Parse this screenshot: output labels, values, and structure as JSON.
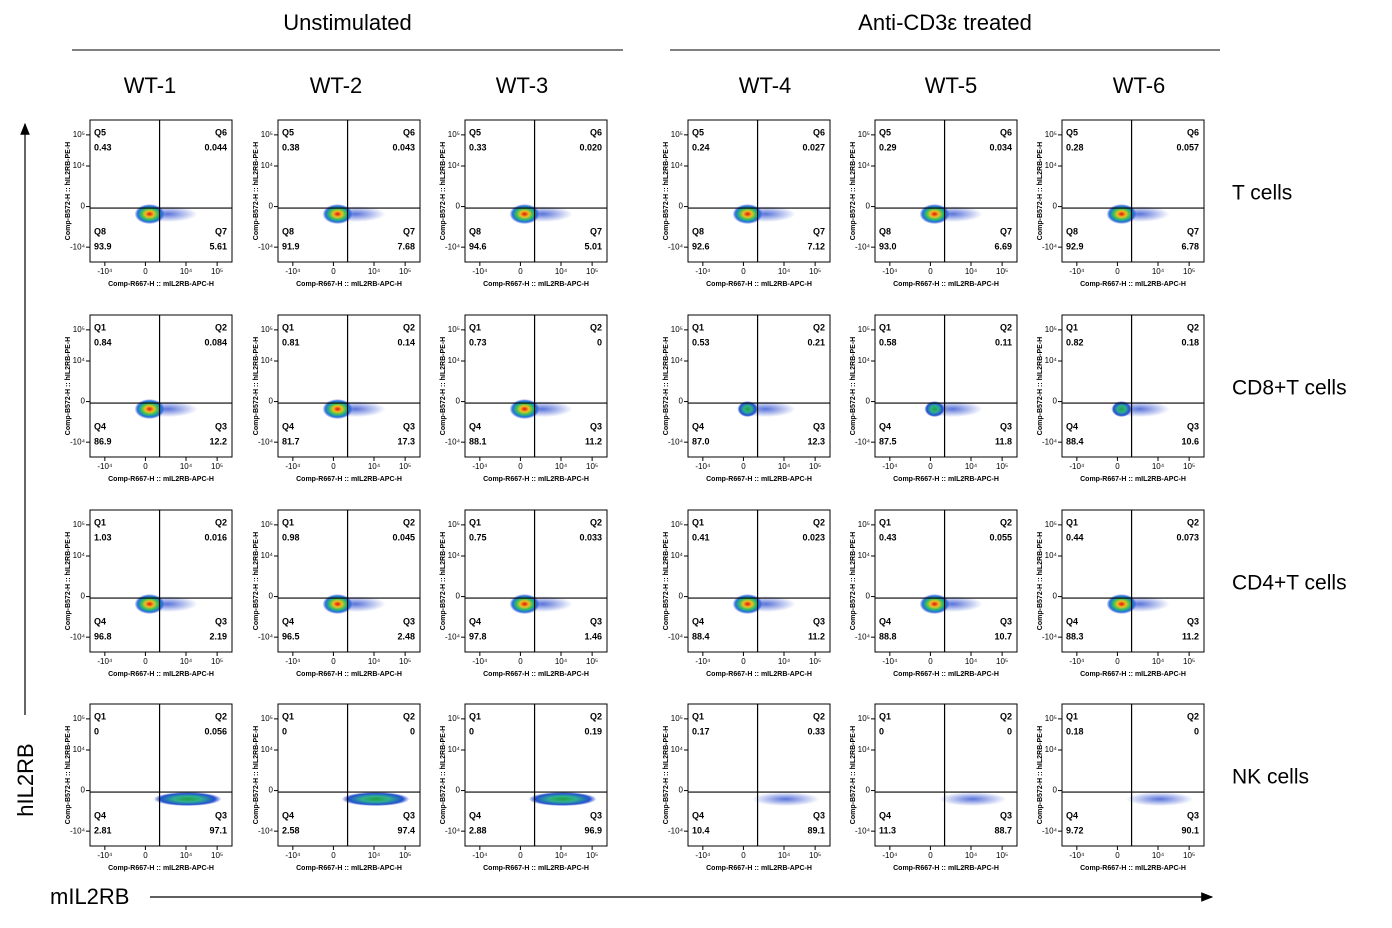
{
  "chart_data": {
    "type": "quadrant-grid",
    "groups": [
      {
        "title": "Unstimulated",
        "columns": [
          0,
          1,
          2
        ]
      },
      {
        "title": "Anti-CD3ε treated",
        "columns": [
          3,
          4,
          5
        ]
      }
    ],
    "columns": [
      "WT-1",
      "WT-2",
      "WT-3",
      "WT-4",
      "WT-5",
      "WT-6"
    ],
    "x_axis_label": "Comp-R667-H :: mIL2RB-APC-H",
    "y_axis_label": "Comp-B572-H :: hIL2RB-PE-H",
    "x_title": "mIL2RB",
    "y_title": "hIL2RB",
    "xlim": [
      -30000,
      300000
    ],
    "ylim": [
      -30000,
      300000
    ],
    "xticks": [
      {
        "value": -10000,
        "label": "-10⁴"
      },
      0,
      {
        "value": 10000,
        "label": "10⁴"
      },
      {
        "value": 100000,
        "label": "10⁵"
      }
    ],
    "yticks": [
      {
        "value": -10000,
        "label": "-10⁴"
      },
      0,
      {
        "value": 10000,
        "label": "10⁴"
      },
      {
        "value": 100000,
        "label": "10⁵"
      }
    ],
    "rows": [
      {
        "label": "T  cells",
        "quadrants": [
          "Q5",
          "Q6",
          "Q8",
          "Q7"
        ],
        "panels": [
          [
            "0.43",
            "0.044",
            "93.9",
            "5.61"
          ],
          [
            "0.38",
            "0.043",
            "91.9",
            "7.68"
          ],
          [
            "0.33",
            "0.020",
            "94.6",
            "5.01"
          ],
          [
            "0.24",
            "0.027",
            "92.6",
            "7.12"
          ],
          [
            "0.29",
            "0.034",
            "93.0",
            "6.69"
          ],
          [
            "0.28",
            "0.057",
            "92.9",
            "6.78"
          ]
        ]
      },
      {
        "label": "CD8+T  cells",
        "quadrants": [
          "Q1",
          "Q2",
          "Q4",
          "Q3"
        ],
        "panels": [
          [
            "0.84",
            "0.084",
            "86.9",
            "12.2"
          ],
          [
            "0.81",
            "0.14",
            "81.7",
            "17.3"
          ],
          [
            "0.73",
            "0",
            "88.1",
            "11.2"
          ],
          [
            "0.53",
            "0.21",
            "87.0",
            "12.3"
          ],
          [
            "0.58",
            "0.11",
            "87.5",
            "11.8"
          ],
          [
            "0.82",
            "0.18",
            "88.4",
            "10.6"
          ]
        ]
      },
      {
        "label": "CD4+T  cells",
        "quadrants": [
          "Q1",
          "Q2",
          "Q4",
          "Q3"
        ],
        "panels": [
          [
            "1.03",
            "0.016",
            "96.8",
            "2.19"
          ],
          [
            "0.98",
            "0.045",
            "96.5",
            "2.48"
          ],
          [
            "0.75",
            "0.033",
            "97.8",
            "1.46"
          ],
          [
            "0.41",
            "0.023",
            "88.4",
            "11.2"
          ],
          [
            "0.43",
            "0.055",
            "88.8",
            "10.7"
          ],
          [
            "0.44",
            "0.073",
            "88.3",
            "11.2"
          ]
        ]
      },
      {
        "label": "NK  cells",
        "quadrants": [
          "Q1",
          "Q2",
          "Q4",
          "Q3"
        ],
        "panels": [
          [
            "0",
            "0.056",
            "2.81",
            "97.1"
          ],
          [
            "0",
            "0",
            "2.58",
            "97.4"
          ],
          [
            "0",
            "0.19",
            "2.88",
            "96.9"
          ],
          [
            "0.17",
            "0.33",
            "10.4",
            "89.1"
          ],
          [
            "0",
            "0",
            "11.3",
            "88.7"
          ],
          [
            "0.18",
            "0",
            "9.72",
            "90.1"
          ]
        ]
      }
    ]
  }
}
